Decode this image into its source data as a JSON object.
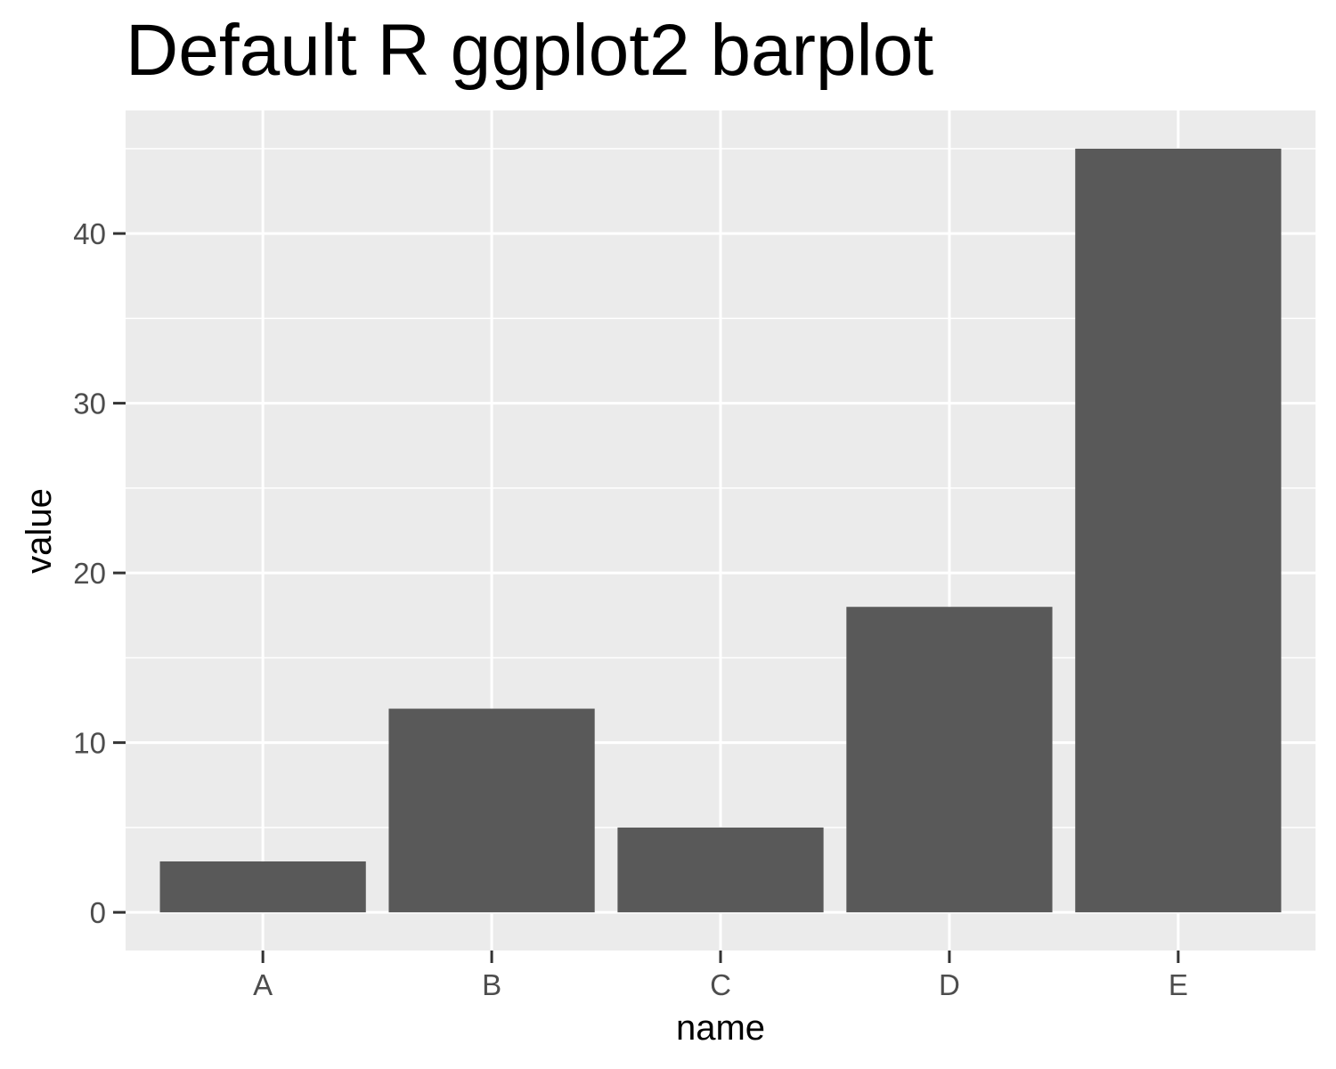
{
  "chart_data": {
    "type": "bar",
    "title": "Default R ggplot2 barplot",
    "xlabel": "name",
    "ylabel": "value",
    "categories": [
      "A",
      "B",
      "C",
      "D",
      "E"
    ],
    "values": [
      3,
      12,
      5,
      18,
      45
    ],
    "ylim": [
      -2.25,
      47.25
    ],
    "y_ticks": [
      0,
      10,
      20,
      30,
      40
    ],
    "y_tick_labels": [
      "0",
      "10",
      "20",
      "30",
      "40"
    ],
    "grid": true,
    "legend": "none",
    "colors": {
      "bar": "#595959",
      "panel_background": "#ebebeb",
      "grid_line": "#ffffff",
      "tick_text": "#4d4d4d",
      "tick_mark": "#333333"
    }
  }
}
